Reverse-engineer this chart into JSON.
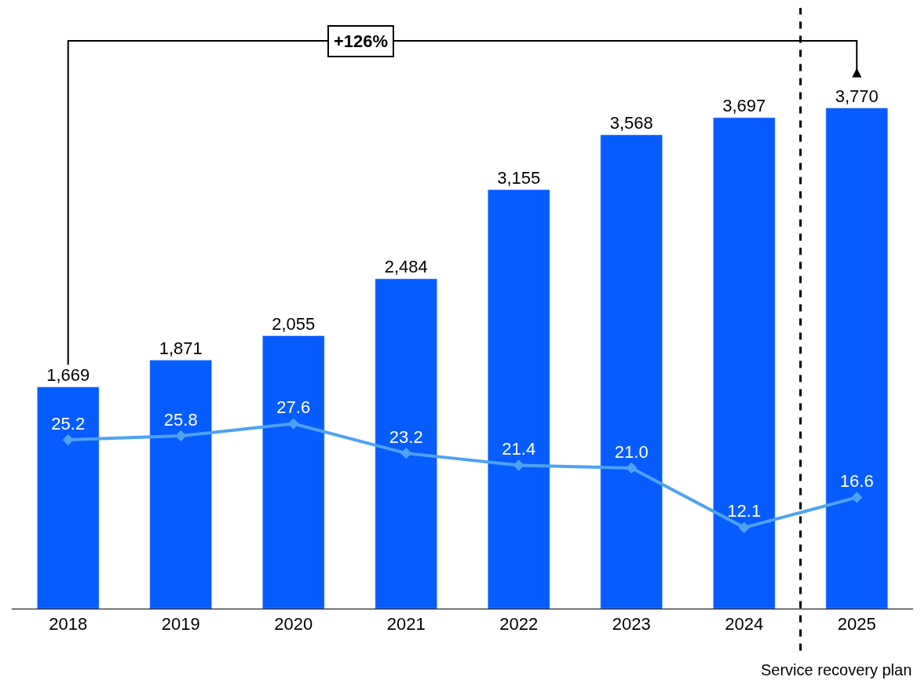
{
  "chart_data": {
    "type": "bar",
    "categories": [
      "2018",
      "2019",
      "2020",
      "2021",
      "2022",
      "2023",
      "2024",
      "2025"
    ],
    "series": [
      {
        "color": "#075cfe",
        "values": [
          1669,
          1871,
          2055,
          2484,
          3155,
          3568,
          3697,
          3770
        ],
        "value_labels": [
          "1,669",
          "1,871",
          "2,055",
          "2,484",
          "3,155",
          "3,568",
          "3,697",
          "3,770"
        ]
      },
      {
        "type": "line",
        "axis": "y2",
        "color": "#4da3f2",
        "marker": "diamond",
        "line_style": "solid",
        "values": [
          25.2,
          25.8,
          27.6,
          23.2,
          21.4,
          21.0,
          12.1,
          16.6
        ],
        "value_labels": [
          "25.2",
          "25.8",
          "27.6",
          "23.2",
          "21.4",
          "21.0",
          "12.1",
          "16.6"
        ]
      }
    ],
    "tick_labels": "x",
    "annotations": [
      "+126%",
      "Service recovery plan"
    ]
  }
}
